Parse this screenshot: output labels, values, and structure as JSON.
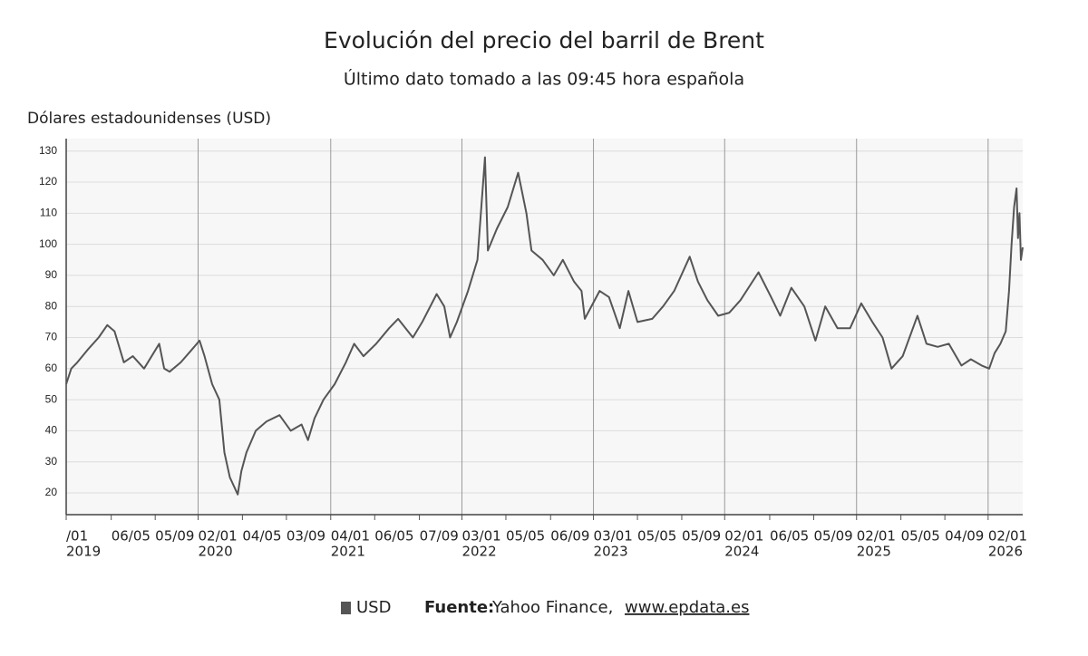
{
  "chart_data": {
    "type": "line",
    "title": "Evolución del precio del barril de Brent",
    "subtitle": "Último dato tomado a las 09:45 hora española",
    "y_label": "Dólares estadounidenses (USD)",
    "x": [
      "2019-01-01",
      "2019-01-15",
      "2019-02-01",
      "2019-03-01",
      "2019-04-01",
      "2019-04-25",
      "2019-05-15",
      "2019-06-10",
      "2019-07-05",
      "2019-08-05",
      "2019-09-16",
      "2019-09-30",
      "2019-10-15",
      "2019-11-15",
      "2019-12-15",
      "2020-01-06",
      "2020-01-20",
      "2020-02-10",
      "2020-03-01",
      "2020-03-15",
      "2020-03-30",
      "2020-04-21",
      "2020-05-01",
      "2020-05-15",
      "2020-06-10",
      "2020-07-10",
      "2020-08-15",
      "2020-09-15",
      "2020-10-15",
      "2020-11-02",
      "2020-11-20",
      "2020-12-15",
      "2021-01-15",
      "2021-02-15",
      "2021-03-10",
      "2021-04-05",
      "2021-05-10",
      "2021-06-15",
      "2021-07-10",
      "2021-08-20",
      "2021-09-15",
      "2021-10-25",
      "2021-11-15",
      "2021-12-01",
      "2021-12-20",
      "2022-01-20",
      "2022-02-15",
      "2022-03-08",
      "2022-03-16",
      "2022-04-10",
      "2022-05-10",
      "2022-06-08",
      "2022-07-01",
      "2022-07-15",
      "2022-08-15",
      "2022-09-15",
      "2022-10-10",
      "2022-11-10",
      "2022-12-01",
      "2022-12-10",
      "2023-01-20",
      "2023-02-15",
      "2023-03-17",
      "2023-04-10",
      "2023-05-05",
      "2023-06-15",
      "2023-07-15",
      "2023-08-15",
      "2023-09-27",
      "2023-10-20",
      "2023-11-15",
      "2023-12-15",
      "2024-01-15",
      "2024-02-15",
      "2024-04-05",
      "2024-05-10",
      "2024-06-04",
      "2024-07-05",
      "2024-08-10",
      "2024-09-10",
      "2024-10-07",
      "2024-11-10",
      "2024-12-15",
      "2025-01-15",
      "2025-02-15",
      "2025-03-15",
      "2025-04-09",
      "2025-05-10",
      "2025-06-20",
      "2025-07-15",
      "2025-08-15",
      "2025-09-15",
      "2025-10-20",
      "2025-11-15",
      "2025-12-15",
      "2026-01-05",
      "2026-01-20",
      "2026-02-05",
      "2026-02-20",
      "2026-03-01",
      "2026-03-08",
      "2026-03-15",
      "2026-03-22",
      "2026-03-26",
      "2026-03-30",
      "2026-04-03",
      "2026-04-08"
    ],
    "series": [
      {
        "name": "USD",
        "color": "#555555",
        "values": [
          55,
          60,
          62,
          66,
          70,
          74,
          72,
          62,
          64,
          60,
          68,
          60,
          59,
          62,
          66,
          69,
          64,
          55,
          50,
          33,
          25,
          19.5,
          27,
          33,
          40,
          43,
          45,
          40,
          42,
          37,
          44,
          50,
          55,
          62,
          68,
          64,
          68,
          73,
          76,
          70,
          75,
          84,
          80,
          70,
          75,
          85,
          95,
          128,
          98,
          105,
          112,
          123,
          110,
          98,
          95,
          90,
          95,
          88,
          85,
          76,
          85,
          83,
          73,
          85,
          75,
          76,
          80,
          85,
          96,
          88,
          82,
          77,
          78,
          82,
          91,
          83,
          77,
          86,
          80,
          69,
          80,
          73,
          73,
          81,
          75,
          70,
          60,
          64,
          77,
          68,
          67,
          68,
          61,
          63,
          61,
          60,
          65,
          68,
          72,
          85,
          100,
          112,
          118,
          102,
          110,
          95,
          99
        ]
      }
    ],
    "xlim": [
      "2019-01-01",
      "2026-04-08"
    ],
    "ylim": [
      13,
      134
    ],
    "yticks": [
      20,
      30,
      40,
      50,
      60,
      70,
      80,
      90,
      100,
      110,
      120,
      130
    ],
    "xticks": [
      {
        "value": "2019-01-01",
        "label": "/01",
        "year": "2019"
      },
      {
        "value": "2019-05-06",
        "label": "06/05"
      },
      {
        "value": "2019-09-05",
        "label": "05/09"
      },
      {
        "value": "2020-01-02",
        "label": "02/01",
        "year": "2020"
      },
      {
        "value": "2020-05-04",
        "label": "04/05"
      },
      {
        "value": "2020-09-03",
        "label": "03/09"
      },
      {
        "value": "2021-01-04",
        "label": "04/01",
        "year": "2021"
      },
      {
        "value": "2021-05-06",
        "label": "06/05"
      },
      {
        "value": "2021-09-07",
        "label": "07/09"
      },
      {
        "value": "2022-01-03",
        "label": "03/01",
        "year": "2022"
      },
      {
        "value": "2022-05-05",
        "label": "05/05"
      },
      {
        "value": "2022-09-06",
        "label": "06/09"
      },
      {
        "value": "2023-01-03",
        "label": "03/01",
        "year": "2023"
      },
      {
        "value": "2023-05-05",
        "label": "05/05"
      },
      {
        "value": "2023-09-05",
        "label": "05/09"
      },
      {
        "value": "2024-01-02",
        "label": "02/01",
        "year": "2024"
      },
      {
        "value": "2024-05-06",
        "label": "06/05"
      },
      {
        "value": "2024-09-05",
        "label": "05/09"
      },
      {
        "value": "2025-01-02",
        "label": "02/01",
        "year": "2025"
      },
      {
        "value": "2025-05-05",
        "label": "05/05"
      },
      {
        "value": "2025-09-04",
        "label": "04/09"
      },
      {
        "value": "2026-01-02",
        "label": "02/01",
        "year": "2026"
      }
    ],
    "grid": true,
    "source_label": "Fuente:",
    "source_text": "Yahoo Finance,",
    "source_link": "www.epdata.es"
  }
}
